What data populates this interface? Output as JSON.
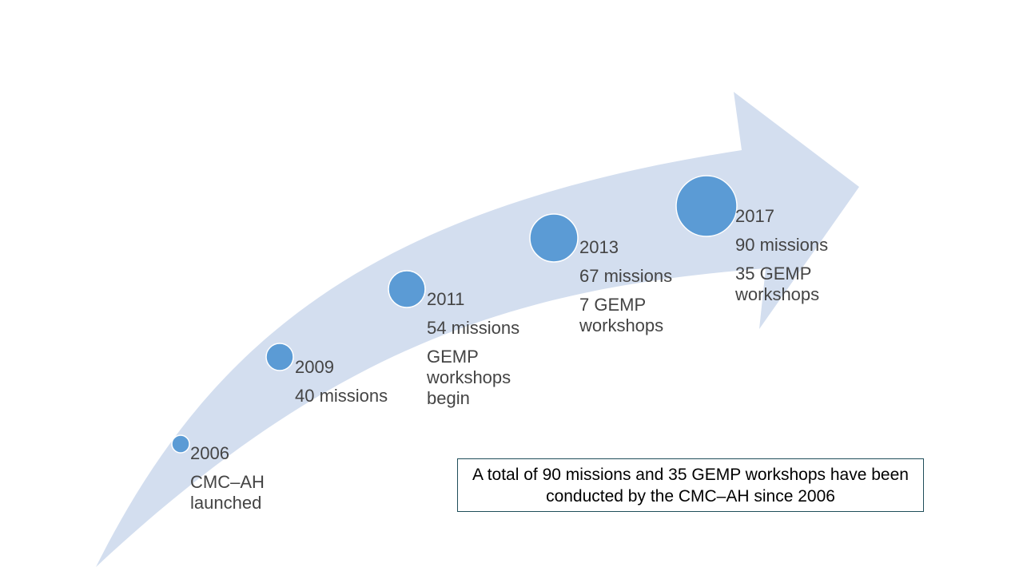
{
  "colors": {
    "arrow": "#d3deef",
    "circle": "#5b9bd5",
    "circle_outline": "#ffffff",
    "text": "#444444",
    "box_border": "#1f4e5a"
  },
  "milestones": [
    {
      "year": "2006",
      "lines": [
        "CMC–AH\nlaunched"
      ]
    },
    {
      "year": "2009",
      "lines": [
        "40 missions"
      ]
    },
    {
      "year": "2011",
      "lines": [
        "54 missions",
        "GEMP\nworkshops\nbegin"
      ]
    },
    {
      "year": "2013",
      "lines": [
        "67 missions",
        "7 GEMP\nworkshops"
      ]
    },
    {
      "year": "2017",
      "lines": [
        "90 missions",
        "35 GEMP\nworkshops"
      ]
    }
  ],
  "summary": "A total of 90 missions and 35 GEMP workshops have been conducted by the CMC–AH since 2006"
}
